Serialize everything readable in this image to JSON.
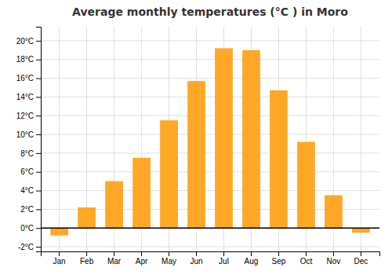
{
  "chart_data": {
    "type": "bar",
    "title": "Average monthly temperatures (°C ) in Moro",
    "categories": [
      "Jan",
      "Feb",
      "Mar",
      "Apr",
      "May",
      "Jun",
      "Jul",
      "Aug",
      "Sep",
      "Oct",
      "Nov",
      "Dec"
    ],
    "values": [
      -0.8,
      2.2,
      5.0,
      7.5,
      11.5,
      15.7,
      19.2,
      19.0,
      14.7,
      9.2,
      3.5,
      -0.5
    ],
    "color": "#FFA726",
    "ylim": [
      -2.5,
      21.5
    ],
    "yticks": [
      {
        "value": -2,
        "label": "-2°C"
      },
      {
        "value": 0,
        "label": "0°C"
      },
      {
        "value": 2,
        "label": "2°C"
      },
      {
        "value": 4,
        "label": "4°C"
      },
      {
        "value": 6,
        "label": "6°C"
      },
      {
        "value": 8,
        "label": "8°C"
      },
      {
        "value": 10,
        "label": "10°C"
      },
      {
        "value": 12,
        "label": "12°C"
      },
      {
        "value": 14,
        "label": "14°C"
      },
      {
        "value": 16,
        "label": "16°C"
      },
      {
        "value": 18,
        "label": "18°C"
      },
      {
        "value": 20,
        "label": "20°C"
      }
    ],
    "grid": true
  }
}
